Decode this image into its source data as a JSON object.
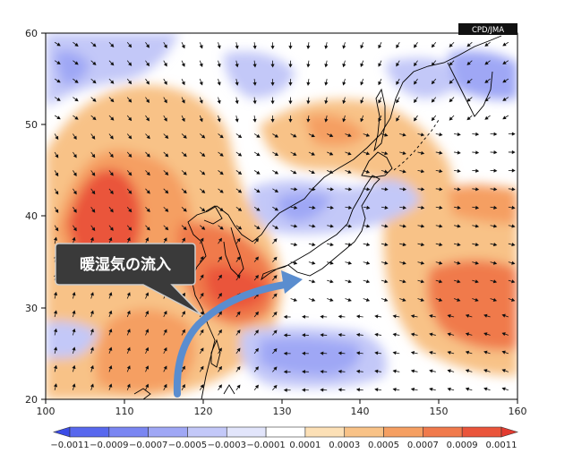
{
  "map": {
    "credit": "CPD/JMA",
    "annotation": "暖湿気の流入",
    "lat_ticks": [
      "20",
      "30",
      "40",
      "50",
      "60"
    ],
    "lon_ticks": [
      "100",
      "110",
      "120",
      "130",
      "140",
      "150",
      "160"
    ],
    "extent": {
      "lon": [
        100,
        160
      ],
      "lat": [
        20,
        60
      ]
    },
    "colorbar": {
      "labels": [
        "−0.0011",
        "−0.0009",
        "−0.0007",
        "−0.0005",
        "−0.0003",
        "−0.0001",
        "0.0001",
        "0.0003",
        "0.0005",
        "0.0007",
        "0.0009",
        "0.0011"
      ],
      "colors": [
        "#3b4ce6",
        "#5868ee",
        "#7a86f2",
        "#9fa7f5",
        "#c3c8f8",
        "#e2e5fb",
        "#ffffff",
        "#fce0b6",
        "#f8c287",
        "#f59f62",
        "#f07a4c",
        "#ea553b",
        "#e33b30"
      ]
    },
    "arrow_color": "#5a8dcf"
  }
}
